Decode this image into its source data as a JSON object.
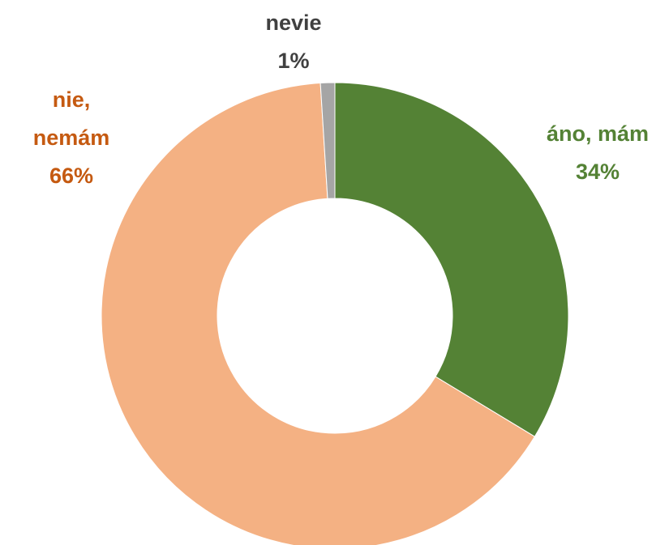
{
  "chart_data": {
    "type": "donut",
    "categories": [
      "áno, mám",
      "nie, nemám",
      "nevie"
    ],
    "values": [
      34,
      66,
      1
    ],
    "value_labels": [
      "34%",
      "66%",
      "1%"
    ],
    "colors": [
      "#548235",
      "#f4b183",
      "#a5a5a5"
    ],
    "label_colors": [
      "#548235",
      "#c55a11",
      "#404040"
    ]
  }
}
